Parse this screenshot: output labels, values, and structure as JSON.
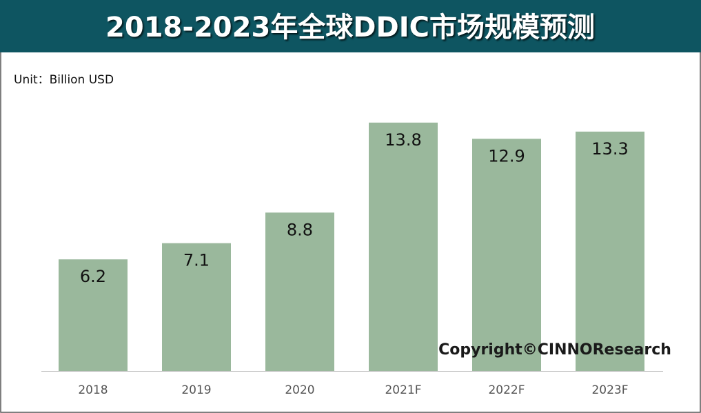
{
  "chart_data": {
    "type": "bar",
    "title": "2018-2023年全球DDIC市场规模预测",
    "subtitle": "Unit：Billion USD",
    "categories": [
      "2018",
      "2019",
      "2020",
      "2021F",
      "2022F",
      "2023F"
    ],
    "values": [
      6.2,
      7.1,
      8.8,
      13.8,
      12.9,
      13.3
    ],
    "color": "#9ab89c",
    "annotation": "Copyright©CINNOResearch"
  }
}
